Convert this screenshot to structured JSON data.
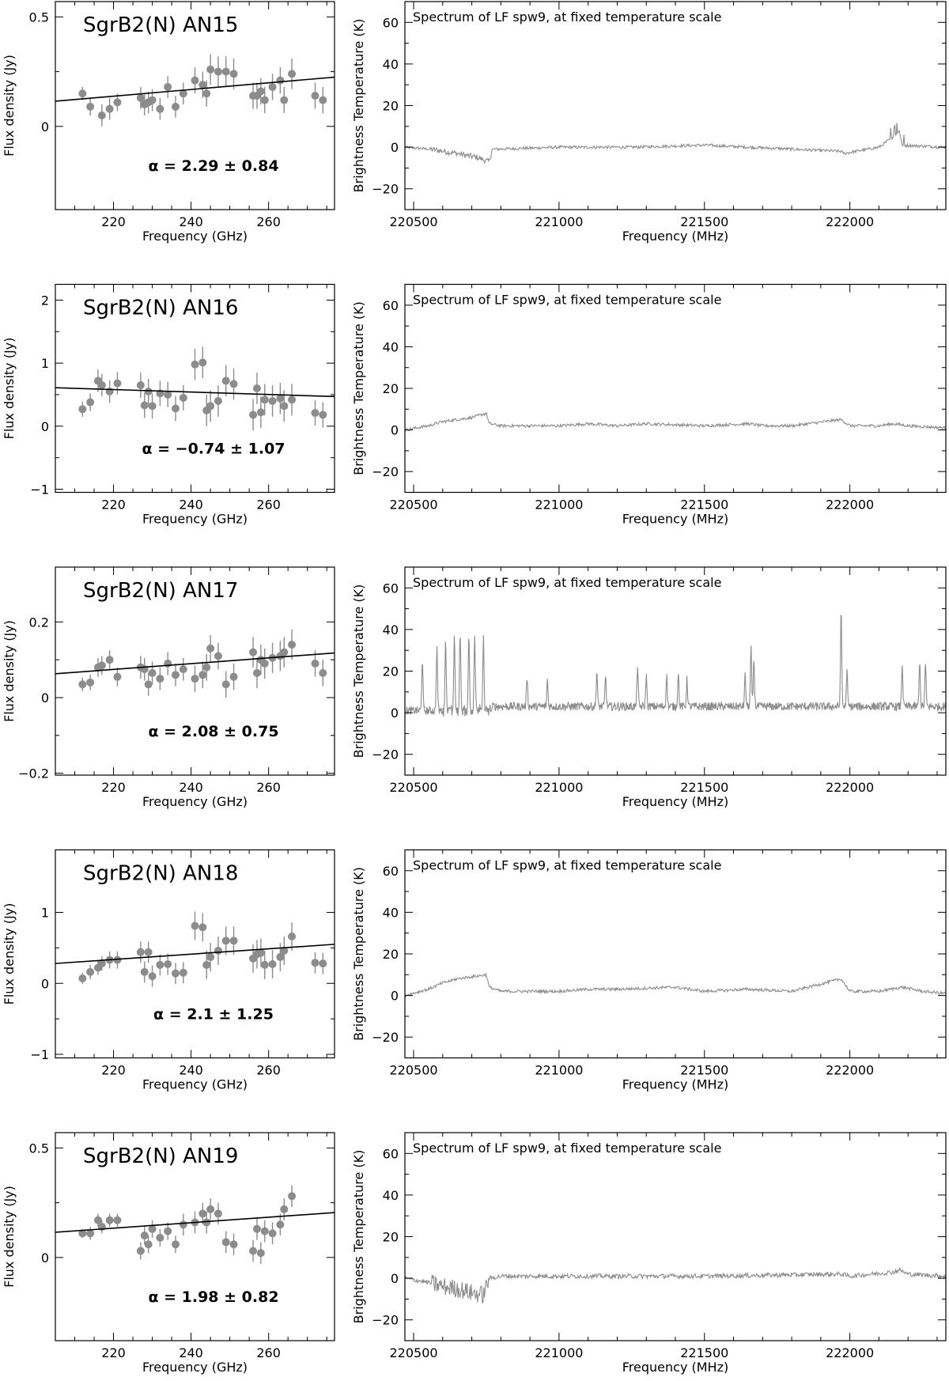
{
  "figure": {
    "sed_x_label": "Frequency (GHz)",
    "sed_y_label": "Flux density (Jy)",
    "spec_x_label": "Frequency (MHz)",
    "spec_y_label": "Brightness Temperature (K)",
    "spec_title": "Spectrum of LF spw9, at fixed temperature scale",
    "colors": {
      "points": "#8c8c8c",
      "fit": "#000000",
      "spectrum": "#8c8c8c",
      "frame": "#000000"
    }
  },
  "chart_data": [
    {
      "type": "scatter",
      "source": "SgrB2(N) AN15",
      "alpha": "α = 2.29 ± 0.84",
      "xlabel": "Frequency (GHz)",
      "ylabel": "Flux density (Jy)",
      "xlim": [
        205,
        277
      ],
      "ylim": [
        -0.38,
        0.57
      ],
      "xticks": [
        220,
        240,
        260
      ],
      "yticks": [
        0,
        0.5
      ],
      "yticklabels": [
        "0",
        "0.5"
      ],
      "x": [
        212,
        214,
        217,
        219,
        221,
        227,
        228,
        229,
        230,
        232,
        234,
        236,
        238,
        241,
        243,
        244,
        245,
        247,
        249,
        251,
        256,
        257,
        258,
        259,
        261,
        263,
        264,
        266,
        272,
        274
      ],
      "y": [
        0.15,
        0.09,
        0.05,
        0.08,
        0.11,
        0.13,
        0.1,
        0.11,
        0.12,
        0.08,
        0.18,
        0.09,
        0.15,
        0.21,
        0.19,
        0.15,
        0.26,
        0.25,
        0.25,
        0.24,
        0.14,
        0.14,
        0.16,
        0.12,
        0.18,
        0.21,
        0.12,
        0.24,
        0.14,
        0.12
      ],
      "err": [
        0.03,
        0.04,
        0.05,
        0.05,
        0.04,
        0.05,
        0.05,
        0.05,
        0.05,
        0.05,
        0.05,
        0.05,
        0.05,
        0.06,
        0.06,
        0.06,
        0.07,
        0.07,
        0.07,
        0.07,
        0.06,
        0.06,
        0.06,
        0.06,
        0.06,
        0.06,
        0.06,
        0.07,
        0.06,
        0.06
      ],
      "fit": [
        [
          205,
          0.115
        ],
        [
          277,
          0.225
        ]
      ]
    },
    {
      "type": "line",
      "source": "SgrB2(N) AN15",
      "title": "Spectrum of LF spw9, at fixed temperature scale",
      "xlabel": "Frequency (MHz)",
      "ylabel": "Brightness Temperature (K)",
      "xlim": [
        220470,
        222330
      ],
      "ylim": [
        -30,
        70
      ],
      "xticks": [
        220500,
        221000,
        221500,
        222000
      ],
      "yticks": [
        -20,
        0,
        20,
        40,
        60
      ],
      "profile": "absorption-dip",
      "spec_x": [
        220470,
        220560,
        220650,
        220720,
        220760,
        220770,
        221000,
        221250,
        221500,
        221650,
        221970,
        221980,
        222100,
        222150,
        222170,
        222180,
        222330
      ],
      "spec_y": [
        0,
        -1,
        -3,
        -5,
        -7,
        -1,
        0,
        0,
        1,
        0,
        -2,
        -3,
        0,
        5,
        8,
        1,
        0
      ]
    },
    {
      "type": "scatter",
      "source": "SgrB2(N) AN16",
      "alpha": "α = −0.74 ± 1.07",
      "xlabel": "Frequency (GHz)",
      "ylabel": "Flux density (Jy)",
      "xlim": [
        205,
        277
      ],
      "ylim": [
        -1.05,
        2.25
      ],
      "xticks": [
        220,
        240,
        260
      ],
      "yticks": [
        -1,
        0,
        1,
        2
      ],
      "yticklabels": [
        "−1",
        "0",
        "1",
        "2"
      ],
      "x": [
        212,
        214,
        216,
        217,
        219,
        221,
        227,
        228,
        229,
        230,
        232,
        234,
        236,
        238,
        241,
        243,
        244,
        245,
        247,
        249,
        251,
        256,
        257,
        258,
        259,
        261,
        263,
        264,
        266,
        272,
        274
      ],
      "y": [
        0.27,
        0.38,
        0.72,
        0.65,
        0.55,
        0.68,
        0.65,
        0.33,
        0.55,
        0.32,
        0.52,
        0.5,
        0.28,
        0.45,
        0.98,
        1.01,
        0.25,
        0.32,
        0.4,
        0.72,
        0.67,
        0.18,
        0.6,
        0.22,
        0.42,
        0.4,
        0.44,
        0.32,
        0.42,
        0.21,
        0.18
      ],
      "err": [
        0.12,
        0.14,
        0.18,
        0.18,
        0.18,
        0.18,
        0.2,
        0.2,
        0.2,
        0.2,
        0.2,
        0.2,
        0.2,
        0.2,
        0.25,
        0.25,
        0.25,
        0.25,
        0.25,
        0.25,
        0.25,
        0.25,
        0.25,
        0.25,
        0.25,
        0.25,
        0.25,
        0.25,
        0.25,
        0.2,
        0.2
      ],
      "fit": [
        [
          205,
          0.61
        ],
        [
          277,
          0.47
        ]
      ]
    },
    {
      "type": "line",
      "source": "SgrB2(N) AN16",
      "title": "Spectrum of LF spw9, at fixed temperature scale",
      "xlabel": "Frequency (MHz)",
      "ylabel": "Brightness Temperature (K)",
      "xlim": [
        220470,
        222330
      ],
      "ylim": [
        -30,
        70
      ],
      "xticks": [
        220500,
        221000,
        221500,
        222000
      ],
      "yticks": [
        -20,
        0,
        20,
        40,
        60
      ],
      "profile": "weak-emission",
      "spec_x": [
        220470,
        220550,
        220600,
        220650,
        220700,
        220750,
        220760,
        220800,
        221000,
        221100,
        221200,
        221300,
        221500,
        221650,
        221700,
        221800,
        221970,
        222000,
        222100,
        222150,
        222200,
        222330
      ],
      "spec_y": [
        0,
        2,
        4,
        5,
        6,
        8,
        3,
        2,
        2,
        3,
        2,
        3,
        2,
        3,
        2,
        2,
        5,
        2,
        2,
        3,
        2,
        1
      ]
    },
    {
      "type": "scatter",
      "source": "SgrB2(N) AN17",
      "alpha": "α = 2.08 ± 0.75",
      "xlabel": "Frequency (GHz)",
      "ylabel": "Flux density (Jy)",
      "xlim": [
        205,
        277
      ],
      "ylim": [
        -0.205,
        0.345
      ],
      "xticks": [
        220,
        240,
        260
      ],
      "yticks": [
        -0.2,
        0,
        0.2
      ],
      "yticklabels": [
        "−0.2",
        "0",
        "0.2"
      ],
      "x": [
        212,
        214,
        216,
        217,
        219,
        221,
        227,
        228,
        229,
        230,
        232,
        234,
        236,
        238,
        241,
        243,
        244,
        245,
        247,
        249,
        251,
        256,
        257,
        258,
        259,
        261,
        263,
        264,
        266,
        272,
        274
      ],
      "y": [
        0.035,
        0.04,
        0.08,
        0.085,
        0.1,
        0.055,
        0.08,
        0.075,
        0.035,
        0.065,
        0.05,
        0.09,
        0.06,
        0.075,
        0.05,
        0.06,
        0.08,
        0.13,
        0.11,
        0.035,
        0.055,
        0.12,
        0.065,
        0.1,
        0.09,
        0.105,
        0.11,
        0.12,
        0.14,
        0.09,
        0.065
      ],
      "err": [
        0.018,
        0.02,
        0.025,
        0.025,
        0.025,
        0.025,
        0.03,
        0.03,
        0.03,
        0.03,
        0.03,
        0.03,
        0.03,
        0.03,
        0.035,
        0.035,
        0.035,
        0.035,
        0.035,
        0.035,
        0.035,
        0.04,
        0.04,
        0.04,
        0.04,
        0.04,
        0.04,
        0.04,
        0.04,
        0.035,
        0.035
      ],
      "fit": [
        [
          205,
          0.063
        ],
        [
          277,
          0.118
        ]
      ]
    },
    {
      "type": "line",
      "source": "SgrB2(N) AN17",
      "title": "Spectrum of LF spw9, at fixed temperature scale",
      "xlabel": "Frequency (MHz)",
      "ylabel": "Brightness Temperature (K)",
      "xlim": [
        220470,
        222330
      ],
      "ylim": [
        -30,
        70
      ],
      "xticks": [
        220500,
        221000,
        221500,
        222000
      ],
      "yticks": [
        -20,
        0,
        20,
        40,
        60
      ],
      "profile": "line-forest",
      "peaks": [
        [
          220530,
          25
        ],
        [
          220580,
          30
        ],
        [
          220610,
          34
        ],
        [
          220640,
          36
        ],
        [
          220660,
          37
        ],
        [
          220690,
          35
        ],
        [
          220710,
          36
        ],
        [
          220740,
          35
        ],
        [
          220890,
          15
        ],
        [
          220960,
          13
        ],
        [
          221130,
          17
        ],
        [
          221160,
          15
        ],
        [
          221270,
          20
        ],
        [
          221300,
          15
        ],
        [
          221370,
          15
        ],
        [
          221410,
          16
        ],
        [
          221440,
          13
        ],
        [
          221640,
          15
        ],
        [
          221660,
          28
        ],
        [
          221670,
          23
        ],
        [
          221970,
          45
        ],
        [
          221990,
          17
        ],
        [
          222180,
          20
        ],
        [
          222240,
          22
        ],
        [
          222260,
          20
        ]
      ]
    },
    {
      "type": "scatter",
      "source": "SgrB2(N) AN18",
      "alpha": "α = 2.1 ± 1.25",
      "xlabel": "Frequency (GHz)",
      "ylabel": "Flux density (Jy)",
      "xlim": [
        205,
        277
      ],
      "ylim": [
        -1.05,
        1.88
      ],
      "xticks": [
        220,
        240,
        260
      ],
      "yticks": [
        -1,
        0,
        1
      ],
      "yticklabels": [
        "−1",
        "0",
        "1"
      ],
      "x": [
        212,
        214,
        216,
        217,
        219,
        221,
        227,
        228,
        229,
        230,
        232,
        234,
        236,
        238,
        241,
        243,
        244,
        245,
        247,
        249,
        251,
        256,
        257,
        258,
        259,
        261,
        263,
        264,
        266,
        272,
        274
      ],
      "y": [
        0.07,
        0.16,
        0.22,
        0.28,
        0.33,
        0.33,
        0.44,
        0.16,
        0.44,
        0.1,
        0.26,
        0.27,
        0.14,
        0.15,
        0.81,
        0.79,
        0.26,
        0.37,
        0.46,
        0.6,
        0.6,
        0.35,
        0.41,
        0.43,
        0.26,
        0.27,
        0.37,
        0.46,
        0.66,
        0.29,
        0.28
      ],
      "err": [
        0.08,
        0.1,
        0.1,
        0.1,
        0.12,
        0.12,
        0.15,
        0.15,
        0.15,
        0.15,
        0.15,
        0.15,
        0.15,
        0.15,
        0.2,
        0.2,
        0.2,
        0.2,
        0.2,
        0.2,
        0.2,
        0.2,
        0.2,
        0.2,
        0.2,
        0.2,
        0.2,
        0.2,
        0.2,
        0.15,
        0.15
      ],
      "fit": [
        [
          205,
          0.28
        ],
        [
          277,
          0.55
        ]
      ]
    },
    {
      "type": "line",
      "source": "SgrB2(N) AN18",
      "title": "Spectrum of LF spw9, at fixed temperature scale",
      "xlabel": "Frequency (MHz)",
      "ylabel": "Brightness Temperature (K)",
      "xlim": [
        220470,
        222330
      ],
      "ylim": [
        -30,
        70
      ],
      "xticks": [
        220500,
        221000,
        221500,
        222000
      ],
      "yticks": [
        -20,
        0,
        20,
        40,
        60
      ],
      "profile": "weak-emission",
      "spec_x": [
        220470,
        220550,
        220600,
        220650,
        220700,
        220750,
        220760,
        220800,
        221000,
        221100,
        221200,
        221400,
        221500,
        221650,
        221800,
        221970,
        222000,
        222100,
        222180,
        222250,
        222330
      ],
      "spec_y": [
        0,
        3,
        6,
        8,
        9,
        10,
        4,
        2,
        2,
        3,
        3,
        4,
        2,
        3,
        2,
        8,
        2,
        2,
        4,
        2,
        1
      ]
    },
    {
      "type": "scatter",
      "source": "SgrB2(N) AN19",
      "alpha": "α = 1.98 ± 0.82",
      "xlabel": "Frequency (GHz)",
      "ylabel": "Flux density (Jy)",
      "xlim": [
        205,
        277
      ],
      "ylim": [
        -0.38,
        0.57
      ],
      "xticks": [
        220,
        240,
        260
      ],
      "yticks": [
        0,
        0.5
      ],
      "yticklabels": [
        "0",
        "0.5"
      ],
      "x": [
        212,
        214,
        216,
        217,
        219,
        221,
        227,
        228,
        229,
        230,
        232,
        234,
        236,
        238,
        241,
        243,
        244,
        245,
        247,
        249,
        251,
        256,
        257,
        258,
        259,
        261,
        263,
        264,
        266
      ],
      "y": [
        0.11,
        0.11,
        0.17,
        0.14,
        0.17,
        0.17,
        0.03,
        0.1,
        0.06,
        0.13,
        0.09,
        0.12,
        0.06,
        0.15,
        0.16,
        0.2,
        0.16,
        0.22,
        0.2,
        0.07,
        0.06,
        0.03,
        0.13,
        0.02,
        0.12,
        0.11,
        0.15,
        0.22,
        0.28
      ],
      "err": [
        0.02,
        0.03,
        0.03,
        0.03,
        0.03,
        0.03,
        0.04,
        0.04,
        0.04,
        0.04,
        0.04,
        0.04,
        0.04,
        0.05,
        0.05,
        0.05,
        0.05,
        0.05,
        0.05,
        0.05,
        0.05,
        0.05,
        0.05,
        0.05,
        0.05,
        0.05,
        0.05,
        0.05,
        0.05
      ],
      "fit": [
        [
          205,
          0.115
        ],
        [
          277,
          0.205
        ]
      ]
    },
    {
      "type": "line",
      "source": "SgrB2(N) AN19",
      "title": "Spectrum of LF spw9, at fixed temperature scale",
      "xlabel": "Frequency (MHz)",
      "ylabel": "Brightness Temperature (K)",
      "xlim": [
        220470,
        222330
      ],
      "ylim": [
        -30,
        70
      ],
      "xticks": [
        220500,
        221000,
        221500,
        222000
      ],
      "yticks": [
        -20,
        0,
        20,
        40,
        60
      ],
      "profile": "noisy",
      "spec_x": [
        220470,
        220550,
        220600,
        220650,
        220700,
        220740,
        220760,
        220800,
        221000,
        221500,
        221970,
        222000,
        222150,
        222170,
        222200,
        222330
      ],
      "spec_y": [
        0,
        -2,
        -4,
        -5,
        -7,
        -8,
        0,
        1,
        1,
        1,
        2,
        1,
        3,
        4,
        2,
        1
      ]
    }
  ]
}
